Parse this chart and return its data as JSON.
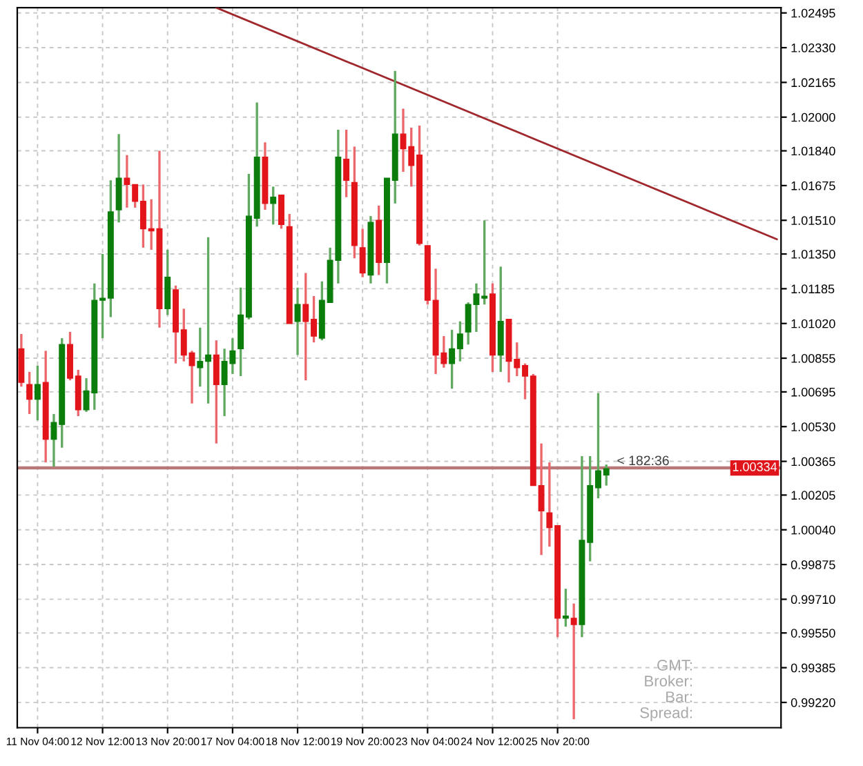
{
  "chart_data": {
    "type": "candlestick",
    "categories": [
      null,
      null,
      "11 Nov 04:00",
      null,
      null,
      null,
      null,
      null,
      null,
      null,
      "12 Nov 12:00",
      null,
      null,
      null,
      null,
      null,
      null,
      null,
      "13 Nov 20:00",
      null,
      null,
      null,
      null,
      null,
      null,
      null,
      "17 Nov 04:00",
      null,
      null,
      null,
      null,
      null,
      null,
      null,
      "18 Nov 12:00",
      null,
      null,
      null,
      null,
      null,
      null,
      null,
      "19 Nov 20:00",
      null,
      null,
      null,
      null,
      null,
      null,
      null,
      "23 Nov 04:00",
      null,
      null,
      null,
      null,
      null,
      null,
      null,
      "24 Nov 12:00",
      null,
      null,
      null,
      null,
      null,
      null,
      null,
      "25 Nov 20:00",
      null,
      null,
      null,
      null,
      null,
      null,
      null,
      null,
      null,
      null,
      null,
      null,
      null,
      null,
      null,
      null,
      null,
      null,
      null,
      null,
      null,
      null,
      null,
      null,
      null,
      null,
      null
    ],
    "ohlc": [
      [
        1.009,
        1.0097,
        1.0072,
        1.0074
      ],
      [
        1.0073,
        1.0079,
        1.0059,
        1.0066
      ],
      [
        1.0066,
        1.0082,
        1.0056,
        1.0073
      ],
      [
        1.0074,
        1.0089,
        1.0036,
        1.0047
      ],
      [
        1.0047,
        1.0059,
        1.0034,
        1.0055
      ],
      [
        1.0054,
        1.0095,
        1.0043,
        1.0092
      ],
      [
        1.0092,
        1.0098,
        1.0075,
        1.0076
      ],
      [
        1.0077,
        1.008,
        1.0058,
        1.0061
      ],
      [
        1.0061,
        1.0076,
        1.006,
        1.007
      ],
      [
        1.0069,
        1.0121,
        1.0061,
        1.0113
      ],
      [
        1.0113,
        1.0135,
        1.0095,
        1.0114
      ],
      [
        1.0114,
        1.017,
        1.0105,
        1.0155
      ],
      [
        1.0156,
        1.0192,
        1.015,
        1.0171
      ],
      [
        1.0171,
        1.0182,
        1.0157,
        1.0168
      ],
      [
        1.0168,
        1.0168,
        1.0157,
        1.016
      ],
      [
        1.016,
        1.0168,
        1.0138,
        1.0147
      ],
      [
        1.0147,
        1.0161,
        1.0137,
        1.0146
      ],
      [
        1.0147,
        1.0184,
        1.01,
        1.0109
      ],
      [
        1.0109,
        1.0137,
        1.0106,
        1.0124
      ],
      [
        1.0118,
        1.012,
        1.0083,
        1.0098
      ],
      [
        1.0099,
        1.0109,
        1.0084,
        1.0087
      ],
      [
        1.0088,
        1.0089,
        1.0064,
        1.0082
      ],
      [
        1.0081,
        1.01,
        1.0072,
        1.0084
      ],
      [
        1.0084,
        1.0143,
        1.0064,
        1.0087
      ],
      [
        1.0087,
        1.0094,
        1.0045,
        1.0073
      ],
      [
        1.0073,
        1.009,
        1.0058,
        1.0084
      ],
      [
        1.0083,
        1.0095,
        1.0078,
        1.0089
      ],
      [
        1.009,
        1.0119,
        1.0077,
        1.0106
      ],
      [
        1.0105,
        1.0173,
        1.0104,
        1.0153
      ],
      [
        1.0152,
        1.0207,
        1.0148,
        1.0181
      ],
      [
        1.0181,
        1.0188,
        1.0156,
        1.0159
      ],
      [
        1.0159,
        1.0167,
        1.0149,
        1.0162
      ],
      [
        1.0163,
        1.0163,
        1.0147,
        1.0149
      ],
      [
        1.0148,
        1.0154,
        1.0102,
        1.0102
      ],
      [
        1.0103,
        1.0119,
        1.0087,
        1.0111
      ],
      [
        1.0111,
        1.0126,
        1.0075,
        1.0103
      ],
      [
        1.0104,
        1.0115,
        1.0093,
        1.0096
      ],
      [
        1.0095,
        1.0122,
        1.0094,
        1.0113
      ],
      [
        1.0112,
        1.0138,
        1.0112,
        1.0132
      ],
      [
        1.0132,
        1.0194,
        1.0121,
        1.0181
      ],
      [
        1.018,
        1.0194,
        1.0162,
        1.017
      ],
      [
        1.0169,
        1.0186,
        1.0133,
        1.0139
      ],
      [
        1.0138,
        1.0147,
        1.0124,
        1.0126
      ],
      [
        1.0125,
        1.0153,
        1.0121,
        1.015
      ],
      [
        1.0151,
        1.0158,
        1.0125,
        1.0131
      ],
      [
        1.0131,
        1.0171,
        1.0121,
        1.0171
      ],
      [
        1.017,
        1.0222,
        1.0159,
        1.0192
      ],
      [
        1.0192,
        1.0204,
        1.0174,
        1.0185
      ],
      [
        1.0186,
        1.0195,
        1.0167,
        1.0177
      ],
      [
        1.0182,
        1.0196,
        1.0139,
        1.014
      ],
      [
        1.0139,
        1.0139,
        1.0111,
        1.0113
      ],
      [
        1.0113,
        1.0128,
        1.0078,
        1.0087
      ],
      [
        1.0088,
        1.0096,
        1.0081,
        1.0083
      ],
      [
        1.0083,
        1.0099,
        1.0071,
        1.009
      ],
      [
        1.009,
        1.0103,
        1.0084,
        1.0097
      ],
      [
        1.0098,
        1.0112,
        1.0092,
        1.0111
      ],
      [
        1.0111,
        1.0121,
        1.0098,
        1.0116
      ],
      [
        1.0114,
        1.0151,
        1.0111,
        1.0115
      ],
      [
        1.0116,
        1.0121,
        1.0079,
        1.0087
      ],
      [
        1.0087,
        1.0129,
        1.0079,
        1.0103
      ],
      [
        1.0104,
        1.0104,
        1.0074,
        1.0084
      ],
      [
        1.0085,
        1.0093,
        1.0077,
        1.0081
      ],
      [
        1.0082,
        1.0083,
        1.0066,
        1.0077
      ],
      [
        1.0077,
        1.0078,
        1.0025,
        1.0025
      ],
      [
        1.0025,
        1.0045,
        0.9992,
        1.0013
      ],
      [
        1.0012,
        1.0036,
        0.9996,
        1.0005
      ],
      [
        1.0006,
        1.0006,
        0.9953,
        0.9962
      ],
      [
        0.9962,
        0.9976,
        0.9958,
        0.9963
      ],
      [
        0.9962,
        0.9969,
        0.9914,
        0.9959
      ],
      [
        0.9959,
        1.0039,
        0.9953,
        0.9999
      ],
      [
        0.9998,
        1.0039,
        0.9989,
        1.0025
      ],
      [
        1.0024,
        1.0069,
        1.0019,
        1.0032
      ],
      [
        1.003,
        1.0035,
        1.0025,
        1.0033
      ],
      null,
      null,
      null,
      null,
      null,
      null,
      null,
      null,
      null,
      null,
      null,
      null,
      null,
      null,
      null,
      null,
      null,
      null,
      null,
      null,
      null
    ],
    "colors": [
      "#e2151b",
      "#e2151b",
      "#0b7d0b",
      "#e2151b",
      "#0b7d0b",
      "#0b7d0b",
      "#e2151b",
      "#e2151b",
      "#0b7d0b",
      "#0b7d0b",
      "#0b7d0b",
      "#0b7d0b",
      "#0b7d0b",
      "#e2151b",
      "#e2151b",
      "#e2151b",
      "#e2151b",
      "#e2151b",
      "#0b7d0b",
      "#e2151b",
      "#e2151b",
      "#e2151b",
      "#0b7d0b",
      "#0b7d0b",
      "#e2151b",
      "#0b7d0b",
      "#0b7d0b",
      "#0b7d0b",
      "#0b7d0b",
      "#0b7d0b",
      "#e2151b",
      "#0b7d0b",
      "#e2151b",
      "#e2151b",
      "#0b7d0b",
      "#e2151b",
      "#e2151b",
      "#0b7d0b",
      "#0b7d0b",
      "#0b7d0b",
      "#e2151b",
      "#e2151b",
      "#e2151b",
      "#0b7d0b",
      "#e2151b",
      "#0b7d0b",
      "#0b7d0b",
      "#e2151b",
      "#e2151b",
      "#e2151b",
      "#e2151b",
      "#e2151b",
      "#e2151b",
      "#0b7d0b",
      "#0b7d0b",
      "#0b7d0b",
      "#0b7d0b",
      "#0b7d0b",
      "#e2151b",
      "#0b7d0b",
      "#e2151b",
      "#e2151b",
      "#e2151b",
      "#e2151b",
      "#e2151b",
      "#e2151b",
      "#e2151b",
      "#0b7d0b",
      "#e2151b",
      "#0b7d0b",
      "#0b7d0b",
      "#0b7d0b",
      "#0b7d0b",
      null,
      null,
      null,
      null,
      null,
      null,
      null,
      null,
      null,
      null,
      null,
      null,
      null,
      null,
      null,
      null,
      null,
      null,
      null,
      null,
      null
    ],
    "series": [
      {
        "type": "line",
        "color": "#a0282d",
        "values": [
          null,
          null,
          null,
          null,
          null,
          null,
          null,
          null,
          null,
          null,
          null,
          null,
          null,
          null,
          null,
          null,
          null,
          null,
          null,
          null,
          null,
          null,
          null,
          null,
          1.0252,
          null,
          null,
          null,
          null,
          null,
          null,
          null,
          null,
          null,
          null,
          null,
          null,
          null,
          null,
          null,
          null,
          null,
          null,
          null,
          null,
          null,
          null,
          null,
          null,
          null,
          null,
          null,
          null,
          null,
          null,
          null,
          null,
          null,
          null,
          null,
          null,
          null,
          null,
          null,
          null,
          null,
          null,
          null,
          null,
          null,
          null,
          null,
          null,
          null,
          null,
          null,
          null,
          null,
          null,
          null,
          null,
          null,
          null,
          null,
          null,
          null,
          null,
          null,
          null,
          null,
          null,
          null,
          null,
          1.0142
        ]
      }
    ],
    "ylim": [
      0.991,
      1.0252
    ],
    "yticks": [
      {
        "value": 0.9922,
        "label": "0.99220"
      },
      {
        "value": 0.99385,
        "label": "0.99385"
      },
      {
        "value": 0.9955,
        "label": "0.99550"
      },
      {
        "value": 0.9971,
        "label": "0.99710"
      },
      {
        "value": 0.99875,
        "label": "0.99875"
      },
      {
        "value": 1.0004,
        "label": "1.00040"
      },
      {
        "value": 1.00205,
        "label": "1.00205"
      },
      {
        "value": 1.00365,
        "label": "1.00365"
      },
      {
        "value": 1.0053,
        "label": "1.00530"
      },
      {
        "value": 1.00695,
        "label": "1.00695"
      },
      {
        "value": 1.00855,
        "label": "1.00855"
      },
      {
        "value": 1.0102,
        "label": "1.01020"
      },
      {
        "value": 1.01185,
        "label": "1.01185"
      },
      {
        "value": 1.0135,
        "label": "1.01350"
      },
      {
        "value": 1.0151,
        "label": "1.01510"
      },
      {
        "value": 1.01675,
        "label": "1.01675"
      },
      {
        "value": 1.0184,
        "label": "1.01840"
      },
      {
        "value": 1.02,
        "label": "1.02000"
      },
      {
        "value": 1.02165,
        "label": "1.02165"
      },
      {
        "value": 1.0233,
        "label": "1.02330"
      },
      {
        "value": 1.02495,
        "label": "1.02495"
      }
    ],
    "grid": true,
    "ref_lines": [
      {
        "axis": "y",
        "value": 1.00334,
        "label": "1.00334",
        "color": "#b87878"
      }
    ],
    "annotations": [
      "< 182:36",
      "GMT:",
      "Broker:",
      "Bar:",
      "Spread:"
    ]
  }
}
